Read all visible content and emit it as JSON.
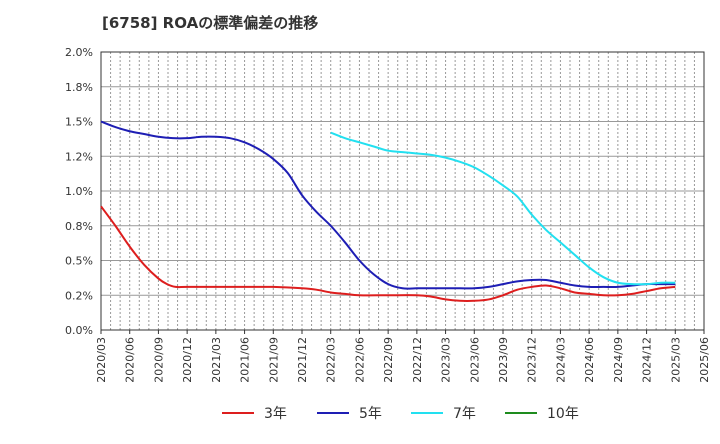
{
  "chart_data": {
    "type": "line",
    "title": "[6758]  ROAの標準偏差の推移",
    "xlabel": "",
    "ylabel": "",
    "ylim": [
      0.0,
      2.0
    ],
    "y_ticks": [
      "0.0%",
      "0.2%",
      "0.5%",
      "0.8%",
      "1.0%",
      "1.2%",
      "1.5%",
      "1.8%",
      "2.0%"
    ],
    "y_tick_values": [
      0.0,
      0.25,
      0.5,
      0.75,
      1.0,
      1.25,
      1.5,
      1.75,
      2.0
    ],
    "x_ticks": [
      "2020/03",
      "2020/06",
      "2020/09",
      "2020/12",
      "2021/03",
      "2021/06",
      "2021/09",
      "2021/12",
      "2022/03",
      "2022/06",
      "2022/09",
      "2022/12",
      "2023/03",
      "2023/06",
      "2023/09",
      "2023/12",
      "2024/03",
      "2024/06",
      "2024/09",
      "2024/12",
      "2025/03",
      "2025/06"
    ],
    "grid": true,
    "legend_position": "bottom",
    "series": [
      {
        "name": "3年",
        "color": "#dd1e1e",
        "x": [
          0,
          0.5,
          1,
          1.5,
          2,
          2.3,
          2.6,
          3,
          4,
          5,
          6,
          7,
          7.5,
          8,
          8.5,
          9,
          10,
          11,
          11.5,
          12,
          12.5,
          13,
          13.5,
          14,
          14.5,
          15,
          15.5,
          16,
          16.5,
          17,
          17.5,
          18,
          18.5,
          19,
          19.5,
          20
        ],
        "values": [
          0.89,
          0.75,
          0.6,
          0.47,
          0.37,
          0.33,
          0.31,
          0.31,
          0.31,
          0.31,
          0.31,
          0.3,
          0.29,
          0.27,
          0.26,
          0.25,
          0.25,
          0.25,
          0.24,
          0.22,
          0.21,
          0.21,
          0.22,
          0.25,
          0.29,
          0.31,
          0.32,
          0.3,
          0.27,
          0.26,
          0.25,
          0.25,
          0.26,
          0.28,
          0.3,
          0.31
        ]
      },
      {
        "name": "5年",
        "color": "#1e1eb4",
        "x": [
          0,
          0.5,
          1,
          1.5,
          2,
          2.5,
          3,
          3.5,
          4,
          4.5,
          5,
          5.5,
          6,
          6.5,
          7,
          7.5,
          8,
          8.5,
          9,
          9.5,
          10,
          10.5,
          11,
          11.5,
          12,
          12.5,
          13,
          13.5,
          14,
          14.5,
          15,
          15.5,
          16,
          16.5,
          17,
          17.5,
          18,
          18.5,
          19,
          19.5,
          20
        ],
        "values": [
          1.5,
          1.46,
          1.43,
          1.41,
          1.39,
          1.38,
          1.38,
          1.39,
          1.39,
          1.38,
          1.35,
          1.3,
          1.23,
          1.13,
          0.97,
          0.85,
          0.75,
          0.63,
          0.5,
          0.4,
          0.33,
          0.3,
          0.3,
          0.3,
          0.3,
          0.3,
          0.3,
          0.31,
          0.33,
          0.35,
          0.36,
          0.36,
          0.34,
          0.32,
          0.31,
          0.31,
          0.31,
          0.32,
          0.33,
          0.33,
          0.33
        ]
      },
      {
        "name": "7年",
        "color": "#22e0f0",
        "x": [
          8,
          8.5,
          9,
          9.5,
          10,
          10.5,
          11,
          11.5,
          12,
          12.5,
          13,
          13.5,
          14,
          14.5,
          15,
          15.5,
          16,
          16.5,
          17,
          17.5,
          18,
          18.5,
          19,
          19.5,
          20
        ],
        "values": [
          1.42,
          1.38,
          1.35,
          1.32,
          1.29,
          1.28,
          1.27,
          1.26,
          1.24,
          1.21,
          1.17,
          1.11,
          1.04,
          0.96,
          0.83,
          0.72,
          0.63,
          0.54,
          0.45,
          0.38,
          0.34,
          0.33,
          0.33,
          0.34,
          0.34
        ]
      },
      {
        "name": "10年",
        "color": "#1e8c1e",
        "x": [],
        "values": []
      }
    ]
  }
}
